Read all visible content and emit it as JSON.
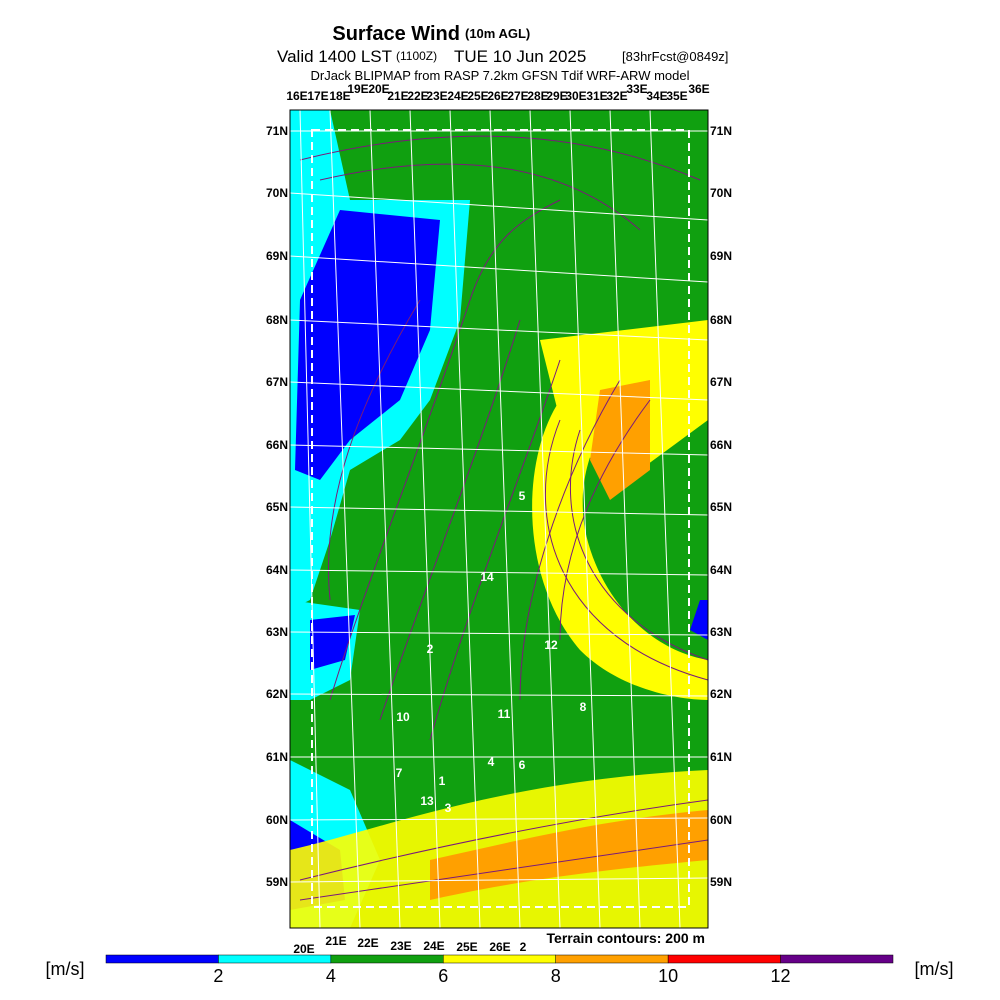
{
  "header": {
    "title": "Surface Wind",
    "title_note": "(10m AGL)",
    "valid": "Valid 1400 LST",
    "valid_z": "(1100Z)",
    "valid_date": "TUE 10 Jun 2025",
    "forecast": "[83hrFcst@0849z]",
    "subtitle": "DrJack BLIPMAP from RASP 7.2km GFSN Tdif WRF-ARW model"
  },
  "map": {
    "lat_labels": [
      "71N",
      "70N",
      "69N",
      "68N",
      "67N",
      "66N",
      "65N",
      "64N",
      "63N",
      "62N",
      "61N",
      "60N",
      "59N"
    ],
    "lon_labels_top": [
      "16E",
      "17E",
      "18E",
      "19E",
      "20E",
      "21E",
      "22E",
      "23E",
      "24E",
      "25E",
      "26E",
      "27E",
      "28E",
      "29E",
      "30E",
      "31E",
      "32E",
      "33E",
      "34E",
      "35E",
      "36E"
    ],
    "lon_labels_bottom": [
      "20E",
      "21E",
      "22E",
      "23E",
      "24E",
      "25E",
      "26E",
      "2"
    ],
    "point_labels": [
      "5",
      "14",
      "2",
      "12",
      "10",
      "11",
      "8",
      "4",
      "6",
      "7",
      "1",
      "13",
      "3"
    ],
    "terrain_note": "Terrain contours: 200 m"
  },
  "colorbar": {
    "unit_left": "[m/s]",
    "unit_right": "[m/s]",
    "range": [
      0,
      14
    ],
    "ticks": [
      2,
      4,
      6,
      8,
      10,
      12
    ],
    "bands": [
      {
        "from": 0,
        "to": 2,
        "color": "#0000ff"
      },
      {
        "from": 2,
        "to": 4,
        "color": "#00ffff"
      },
      {
        "from": 4,
        "to": 6,
        "color": "#10a010"
      },
      {
        "from": 6,
        "to": 8,
        "color": "#ffff00"
      },
      {
        "from": 8,
        "to": 10,
        "color": "#ffa000"
      },
      {
        "from": 10,
        "to": 12,
        "color": "#ff0000"
      },
      {
        "from": 12,
        "to": 14,
        "color": "#660088"
      }
    ]
  }
}
